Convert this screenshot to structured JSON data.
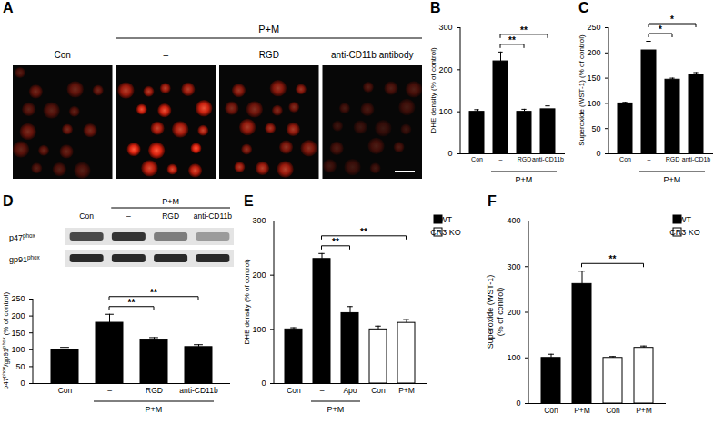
{
  "chart_data": [
    {
      "type": "image",
      "title": "A",
      "columns": [
        "Con",
        "–",
        "RGD",
        "anti-CD11b antibody"
      ],
      "groups": [
        {
          "label": "P+M",
          "from": 1,
          "to": 3
        }
      ]
    },
    {
      "type": "bar",
      "title": "B",
      "categories": [
        "Con",
        "–",
        "RGD",
        "anti-CD11b"
      ],
      "values": [
        100,
        220,
        100,
        106
      ],
      "errors": [
        5,
        22,
        6,
        8
      ],
      "color": "#000000",
      "y_label": [
        "DHE density (% of control)"
      ],
      "ylim": [
        0,
        300
      ],
      "yticks": [
        0,
        100,
        200,
        300
      ],
      "groups": [
        {
          "label": "P+M",
          "from": 1,
          "to": 3
        }
      ],
      "annotations": [
        {
          "from": 1,
          "to": 2,
          "label": "**"
        },
        {
          "from": 1,
          "to": 3,
          "label": "**"
        }
      ]
    },
    {
      "type": "bar",
      "title": "C",
      "categories": [
        "Con",
        "–",
        "RGD",
        "anti-CD1b"
      ],
      "values": [
        100,
        205,
        147,
        157
      ],
      "errors": [
        2,
        18,
        3,
        4
      ],
      "color": "#000000",
      "y_label": [
        "Superoxide (WST-1) (% of control)"
      ],
      "ylim": [
        0,
        250
      ],
      "yticks": [
        0,
        50,
        100,
        150,
        200,
        250
      ],
      "groups": [
        {
          "label": "P+M",
          "from": 1,
          "to": 3
        }
      ],
      "annotations": [
        {
          "from": 1,
          "to": 2,
          "label": "*"
        },
        {
          "from": 1,
          "to": 3,
          "label": "*"
        }
      ]
    },
    {
      "type": "bar",
      "title": "D",
      "blot": {
        "rows": [
          [
            {
              "text": "p47"
            },
            {
              "text": "phox",
              "sup": true
            }
          ],
          [
            {
              "text": "gp91"
            },
            {
              "text": "phox",
              "sup": true
            }
          ]
        ],
        "columns": [
          "Con",
          "–",
          "RGD",
          "anti-CD11b"
        ],
        "groups": [
          {
            "label": "P+M",
            "from": 1,
            "to": 3
          }
        ]
      },
      "categories": [
        "Con",
        "–",
        "RGD",
        "anti-CD11b"
      ],
      "values": [
        100,
        180,
        128,
        108
      ],
      "errors": [
        7,
        25,
        8,
        7
      ],
      "color": "#000000",
      "y_label": [
        [
          {
            "text": "p47"
          },
          {
            "text": "phox",
            "sup": true
          },
          {
            "text": "/gp91"
          },
          {
            "text": "phox",
            "sup": true
          },
          {
            "text": " (% of control)"
          }
        ]
      ],
      "ylim": [
        0,
        250
      ],
      "yticks": [
        0,
        50,
        100,
        150,
        200,
        250
      ],
      "groups": [
        {
          "label": "P+M",
          "from": 1,
          "to": 3
        }
      ],
      "annotations": [
        {
          "from": 1,
          "to": 2,
          "label": "**"
        },
        {
          "from": 1,
          "to": 3,
          "label": "**"
        }
      ]
    },
    {
      "type": "bar",
      "title": "E",
      "categories": [
        "Con",
        "–",
        "Apo",
        "Con",
        "P+M"
      ],
      "series": [
        {
          "name": "WT",
          "color": "#000000",
          "values": [
            100,
            230,
            130,
            null,
            null
          ],
          "errors": [
            3,
            10,
            12,
            null,
            null
          ]
        },
        {
          "name": "CR3 KO",
          "color": "#ffffff",
          "values": [
            null,
            null,
            null,
            100,
            112
          ],
          "errors": [
            null,
            null,
            null,
            6,
            6
          ]
        }
      ],
      "legend": "top-right",
      "y_label": [
        "DHE density (% of control)"
      ],
      "ylim": [
        0,
        300
      ],
      "yticks": [
        0,
        100,
        200,
        300
      ],
      "groups": [
        {
          "label": "P+M",
          "from": 1,
          "to": 2
        }
      ],
      "annotations": [
        {
          "from": 1,
          "to": 2,
          "label": "**"
        },
        {
          "from": 1,
          "to": 4,
          "label": "**"
        }
      ]
    },
    {
      "type": "bar",
      "title": "F",
      "categories": [
        "Con",
        "P+M",
        "Con",
        "P+M"
      ],
      "series": [
        {
          "name": "WT",
          "color": "#000000",
          "values": [
            100,
            262,
            null,
            null
          ],
          "errors": [
            8,
            28,
            null,
            null
          ]
        },
        {
          "name": "CR3 KO",
          "color": "#ffffff",
          "values": [
            null,
            null,
            100,
            122
          ],
          "errors": [
            null,
            null,
            3,
            4
          ]
        }
      ],
      "legend": "top-right",
      "y_label": [
        "Superoxide (WST-1)",
        "(% of control)"
      ],
      "ylim": [
        0,
        400
      ],
      "yticks": [
        0,
        100,
        200,
        300,
        400
      ],
      "annotations": [
        {
          "from": 1,
          "to": 3,
          "label": "**"
        }
      ]
    }
  ]
}
